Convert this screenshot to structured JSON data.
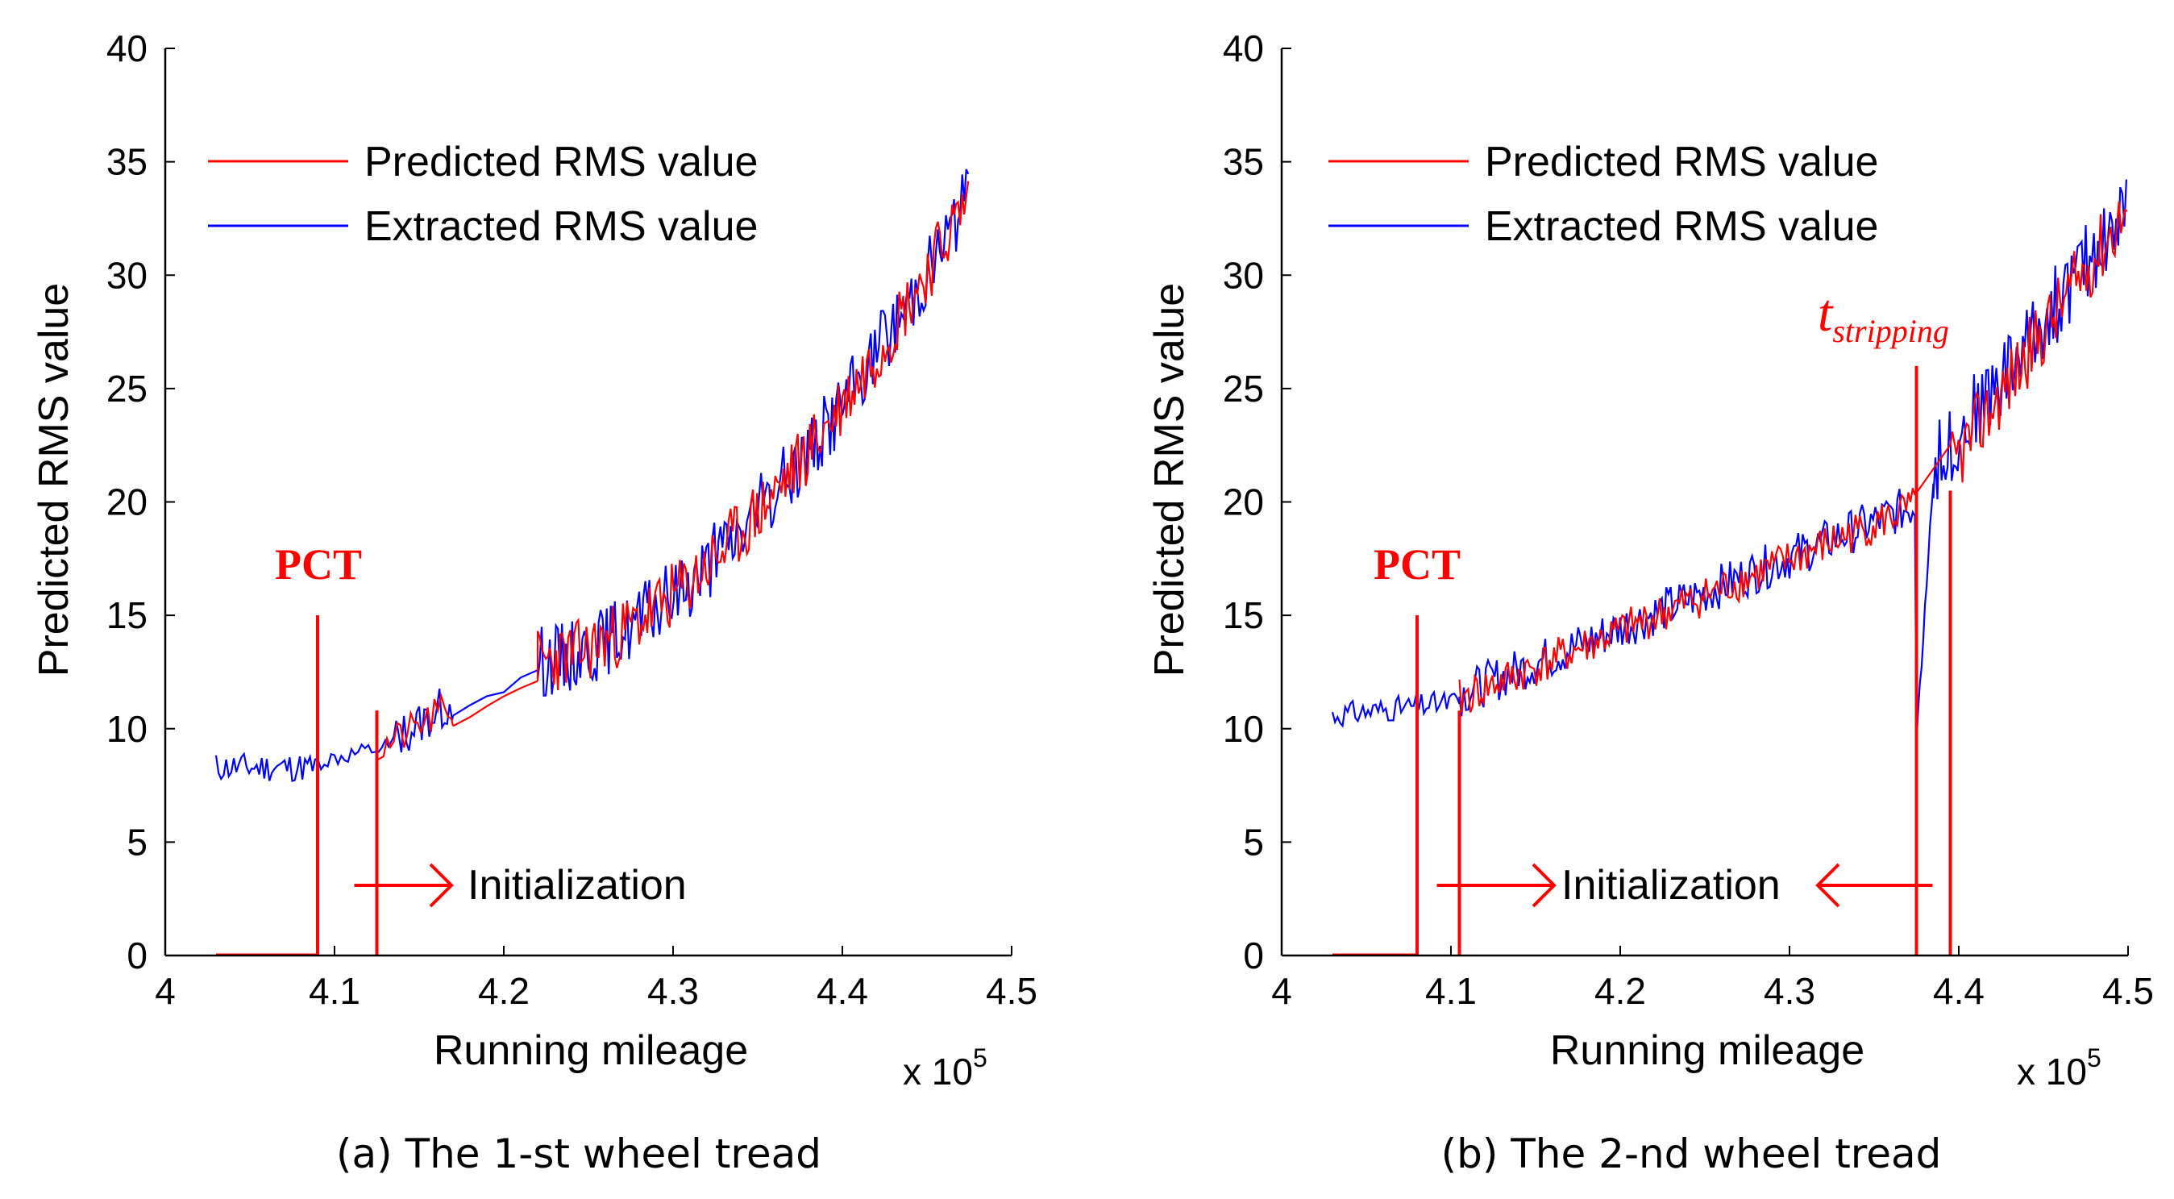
{
  "colors": {
    "predicted": "#ff0000",
    "extracted": "#0000ff",
    "marker": "#ff0000",
    "axis": "#000000"
  },
  "chart_data": [
    {
      "type": "line",
      "caption": "(a) The 1-st wheel tread",
      "xlabel": "Running mileage",
      "ylabel": "Predicted RMS value",
      "x_multiplier": "x 10",
      "x_multiplier_exp": "5",
      "xlim": [
        4,
        4.5
      ],
      "ylim": [
        0,
        40
      ],
      "xticks": [
        "4",
        "4.1",
        "4.2",
        "4.3",
        "4.4",
        "4.5"
      ],
      "yticks": [
        "0",
        "5",
        "10",
        "15",
        "20",
        "25",
        "30",
        "35",
        "40"
      ],
      "legend": {
        "position": "top-left",
        "entries": [
          "Predicted RMS value",
          "Extracted RMS value"
        ]
      },
      "annotations": {
        "pct_label": "PCT",
        "pct_x": 4.09,
        "pct_line_top": 15,
        "init_start_x": 4.125,
        "init_label": "Initialization"
      },
      "series": [
        {
          "name": "Extracted RMS value",
          "segments": [
            {
              "x0": 4.03,
              "x1": 4.09,
              "base0": 8.3,
              "base1": 8.3,
              "amp": 0.65,
              "step": 0.0015,
              "seed": 11
            },
            {
              "x0": 4.09,
              "x1": 4.135,
              "base0": 8.5,
              "base1": 9.2,
              "amp": 0.4,
              "step": 0.002,
              "seed": 12
            },
            {
              "x0": 4.135,
              "x1": 4.17,
              "base0": 9.5,
              "base1": 11.2,
              "amp": 1.0,
              "step": 0.0015,
              "seed": 13
            },
            {
              "x0": 4.17,
              "x1": 4.22,
              "base0": 10.6,
              "base1": 12.5,
              "amp": 0.15,
              "step": 0.01,
              "seed": 14
            },
            {
              "x0": 4.22,
              "x1": 4.475,
              "base0": 13.0,
              "base1": 33.5,
              "amp": 1.6,
              "step": 0.0012,
              "seed": 15,
              "curve": 1.7
            }
          ]
        },
        {
          "name": "Predicted RMS value",
          "flat_zero": [
            4.03,
            4.09
          ],
          "segments": [
            {
              "x0": 4.125,
              "x1": 4.17,
              "base0": 9.0,
              "base1": 11.0,
              "amp": 0.8,
              "step": 0.002,
              "seed": 21
            },
            {
              "x0": 4.17,
              "x1": 4.22,
              "base0": 10.2,
              "base1": 12.2,
              "amp": 0.1,
              "step": 0.01,
              "seed": 22
            },
            {
              "x0": 4.22,
              "x1": 4.475,
              "base0": 13.0,
              "base1": 33.5,
              "amp": 1.5,
              "step": 0.0012,
              "seed": 23,
              "curve": 1.7
            }
          ]
        }
      ]
    },
    {
      "type": "line",
      "caption": "(b) The 2-nd wheel tread",
      "xlabel": "Running mileage",
      "ylabel": "Predicted RMS value",
      "x_multiplier": "x 10",
      "x_multiplier_exp": "5",
      "xlim": [
        4,
        4.5
      ],
      "ylim": [
        0,
        40
      ],
      "xticks": [
        "4",
        "4.1",
        "4.2",
        "4.3",
        "4.4",
        "4.5"
      ],
      "yticks": [
        "0",
        "5",
        "10",
        "15",
        "20",
        "25",
        "30",
        "35",
        "40"
      ],
      "legend": {
        "position": "top-left",
        "entries": [
          "Predicted RMS value",
          "Extracted RMS value"
        ]
      },
      "annotations": {
        "pct_label": "PCT",
        "pct_x": 4.08,
        "pct_line_top": 15,
        "init_start_x": 4.105,
        "init_label": "Initialization",
        "tstrip_x": 4.375,
        "tstrip_line_top": 26,
        "tstrip_label": "t",
        "tstrip_sub": "stripping",
        "second_init_x": 4.395
      },
      "series": [
        {
          "name": "Extracted RMS value",
          "segments": [
            {
              "x0": 4.03,
              "x1": 4.105,
              "base0": 10.6,
              "base1": 11.2,
              "amp": 0.55,
              "step": 0.0015,
              "seed": 31
            },
            {
              "x0": 4.105,
              "x1": 4.375,
              "base0": 11.5,
              "base1": 19.9,
              "amp": 1.0,
              "step": 0.0013,
              "seed": 32
            },
            {
              "x0": 4.375,
              "x1": 4.385,
              "base0": 9.5,
              "base1": 21.0,
              "amp": 0.3,
              "step": 0.001,
              "seed": 33
            },
            {
              "x0": 4.385,
              "x1": 4.5,
              "base0": 21.5,
              "base1": 33.0,
              "amp": 1.8,
              "step": 0.0012,
              "seed": 34
            }
          ]
        },
        {
          "name": "Predicted RMS value",
          "flat_zero": [
            4.03,
            4.08
          ],
          "segments": [
            {
              "x0": 4.105,
              "x1": 4.375,
              "base0": 11.3,
              "base1": 19.8,
              "amp": 0.9,
              "step": 0.0013,
              "seed": 41
            },
            {
              "x0": 4.395,
              "x1": 4.5,
              "base0": 21.5,
              "base1": 33.0,
              "amp": 1.6,
              "step": 0.0012,
              "seed": 42
            }
          ]
        }
      ]
    }
  ]
}
